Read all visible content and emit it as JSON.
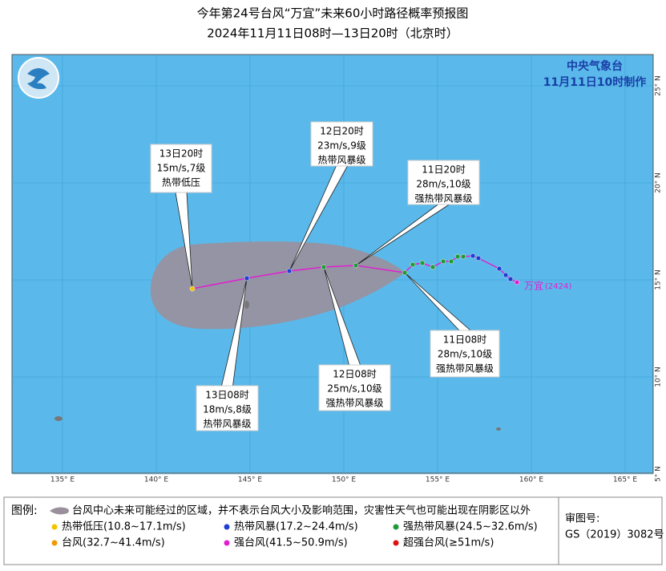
{
  "title": "今年第24号台风“万宜”未来60小时路径概率预报图",
  "subtitle": "2024年11月11日08时—13日20时（北京时）",
  "agency": "中央气象台",
  "issued": "11月11日10时制作",
  "typhoon": {
    "name": "万宜",
    "code": "(2424)"
  },
  "map": {
    "lon_ticks": [
      {
        "value": 135,
        "label": "135° E"
      },
      {
        "value": 140,
        "label": "140° E"
      },
      {
        "value": 145,
        "label": "145° E"
      },
      {
        "value": 150,
        "label": "150° E"
      },
      {
        "value": 155,
        "label": "155° E"
      },
      {
        "value": 160,
        "label": "160° E"
      },
      {
        "value": 165,
        "label": "165° E"
      }
    ],
    "lat_ticks": [
      {
        "value": 5,
        "label": "5° N"
      },
      {
        "value": 10,
        "label": "10° N"
      },
      {
        "value": 15,
        "label": "15° N"
      },
      {
        "value": 20,
        "label": "20° N"
      },
      {
        "value": 25,
        "label": "25° N"
      }
    ]
  },
  "forecasts": [
    {
      "time": "13日20时",
      "wind": "15m/s,7级",
      "level": "热带低压"
    },
    {
      "time": "12日20时",
      "wind": "23m/s,9级",
      "level": "热带风暴级"
    },
    {
      "time": "11日20时",
      "wind": "28m/s,10级",
      "level": "强热带风暴级"
    },
    {
      "time": "11日08时",
      "wind": "28m/s,10级",
      "level": "强热带风暴级"
    },
    {
      "time": "12日08时",
      "wind": "25m/s,10级",
      "level": "强热带风暴级"
    },
    {
      "time": "13日08时",
      "wind": "18m/s,8级",
      "level": "热带风暴级"
    }
  ],
  "legend": {
    "title": "图例:",
    "cone": "台风中心未来可能经过的区域，并不表示台风大小及影响范围，灾害性天气也可能出现在阴影区以外",
    "items": [
      {
        "label": "热带低压(10.8~17.1m/s)",
        "color": "#f2c400"
      },
      {
        "label": "热带风暴(17.2~24.4m/s)",
        "color": "#1f3fd1"
      },
      {
        "label": "强热带风暴(24.5~32.6m/s)",
        "color": "#1f9a3a"
      },
      {
        "label": "台风(32.7~41.4m/s)",
        "color": "#f29a00"
      },
      {
        "label": "强台风(41.5~50.9m/s)",
        "color": "#e020d0"
      },
      {
        "label": "超强台风(≥51m/s)",
        "color": "#e01010"
      }
    ]
  },
  "approval": {
    "label": "审图号:",
    "number": "GS（2019）3082号"
  }
}
